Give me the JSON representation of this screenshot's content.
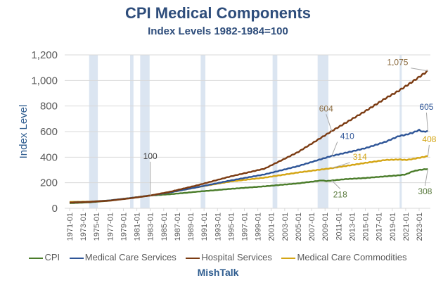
{
  "chart_data": {
    "type": "line",
    "title": "CPI Medical Components",
    "subtitle": "Index Levels 1982-1984=100",
    "xlabel": "",
    "ylabel": "Index Level",
    "source": "MishTalk",
    "ylim": [
      0,
      1200
    ],
    "xlim": [
      1971.0,
      2024.5
    ],
    "yticks": [
      0,
      200,
      400,
      600,
      800,
      1000,
      1200
    ],
    "ytick_labels": [
      "0",
      "200",
      "400",
      "600",
      "800",
      "1,000",
      "1,200"
    ],
    "xtick_labels": [
      "1971-01",
      "1973-01",
      "1975-01",
      "1977-01",
      "1979-01",
      "1981-01",
      "1983-01",
      "1985-01",
      "1987-01",
      "1989-01",
      "1991-01",
      "1993-01",
      "1995-01",
      "1997-01",
      "1999-01",
      "2001-01",
      "2003-01",
      "2005-01",
      "2007-01",
      "2009-01",
      "2011-01",
      "2013-01",
      "2015-01",
      "2017-01",
      "2019-01",
      "2021-01",
      "2023-01"
    ],
    "xtick_values": [
      1971,
      1973,
      1975,
      1977,
      1979,
      1981,
      1983,
      1985,
      1987,
      1989,
      1991,
      1993,
      1995,
      1997,
      1999,
      2001,
      2003,
      2005,
      2007,
      2009,
      2011,
      2013,
      2015,
      2017,
      2019,
      2021,
      2023
    ],
    "grid": true,
    "legend_position": "bottom",
    "recessions": [
      [
        1973.9,
        1975.2
      ],
      [
        1980.0,
        1980.5
      ],
      [
        1981.5,
        1982.9
      ],
      [
        1990.5,
        1991.2
      ],
      [
        2001.2,
        2001.9
      ],
      [
        2007.9,
        2009.5
      ],
      [
        2020.1,
        2020.4
      ]
    ],
    "series": [
      {
        "name": "CPI",
        "color": "#4a7c2a",
        "x": [
          1971,
          1974,
          1977,
          1980,
          1983,
          1986,
          1990,
          1995,
          2000,
          2005,
          2008.5,
          2009.2,
          2012,
          2015,
          2018,
          2020,
          2021,
          2022,
          2023,
          2024.3
        ],
        "values": [
          40,
          47,
          60,
          80,
          100,
          110,
          130,
          152,
          172,
          195,
          218,
          213,
          228,
          237,
          250,
          258,
          265,
          288,
          300,
          308
        ]
      },
      {
        "name": "Medical Care Services",
        "color": "#2e5597",
        "x": [
          1971,
          1974,
          1977,
          1980,
          1983,
          1986,
          1990,
          1995,
          2000,
          2005,
          2010,
          2013,
          2015,
          2018,
          2020,
          2021,
          2022,
          2023,
          2023.6,
          2024.3
        ],
        "values": [
          45,
          50,
          62,
          80,
          100,
          125,
          165,
          218,
          265,
          330,
          410,
          445,
          470,
          520,
          565,
          575,
          590,
          612,
          598,
          605
        ]
      },
      {
        "name": "Hospital Services",
        "color": "#7b3b12",
        "x": [
          1971,
          1974,
          1977,
          1980,
          1983,
          1986,
          1990,
          1995,
          2000,
          2005,
          2010,
          2015,
          2018,
          2020,
          2022,
          2024.3
        ],
        "values": [
          45,
          50,
          60,
          78,
          100,
          130,
          180,
          250,
          310,
          440,
          604,
          760,
          860,
          920,
          990,
          1075
        ]
      },
      {
        "name": "Medical Care Commodities",
        "color": "#d4a514",
        "x": [
          1971,
          1974,
          1977,
          1980,
          1983,
          1986,
          1990,
          1995,
          2000,
          2005,
          2010,
          2015,
          2018,
          2020,
          2021,
          2022,
          2024.3
        ],
        "values": [
          50,
          52,
          62,
          80,
          100,
          125,
          165,
          210,
          240,
          280,
          314,
          355,
          378,
          382,
          378,
          385,
          408
        ]
      }
    ],
    "annotations": [
      {
        "text": "100",
        "x": 1983,
        "y": 100,
        "color": "#404040"
      },
      {
        "text": "1,075",
        "x": 2024.3,
        "y": 1075,
        "color": "#8a6a3e"
      },
      {
        "text": "604",
        "x": 2010,
        "y": 604,
        "color": "#8a6a3e"
      },
      {
        "text": "605",
        "x": 2024.3,
        "y": 605,
        "color": "#2e5597"
      },
      {
        "text": "410",
        "x": 2010,
        "y": 410,
        "color": "#2e5597"
      },
      {
        "text": "408",
        "x": 2024.3,
        "y": 408,
        "color": "#d4a514"
      },
      {
        "text": "314",
        "x": 2010,
        "y": 314,
        "color": "#d4a514"
      },
      {
        "text": "218",
        "x": 2010,
        "y": 218,
        "color": "#5a7a3e"
      },
      {
        "text": "308",
        "x": 2024.3,
        "y": 308,
        "color": "#5a7a3e"
      }
    ]
  }
}
